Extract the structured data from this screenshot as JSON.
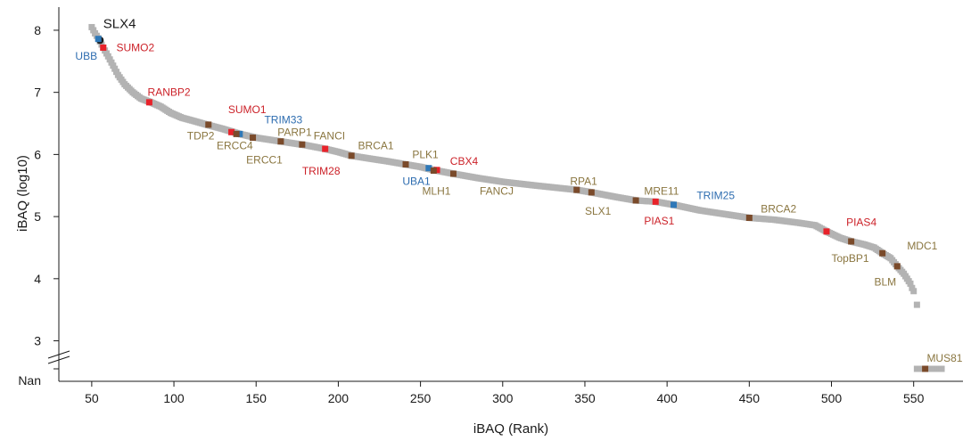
{
  "chart_data": {
    "type": "scatter",
    "xlabel": "iBAQ (Rank)",
    "ylabel": "iBAQ (log10)",
    "xlim": [
      30,
      580
    ],
    "ylim": [
      2.85,
      8.2
    ],
    "x_ticks": [
      50,
      100,
      150,
      200,
      250,
      300,
      350,
      400,
      450,
      500,
      550
    ],
    "y_ticks": [
      3,
      4,
      5,
      6,
      7,
      8
    ],
    "y_nan_label": "Nan",
    "axis_break": true,
    "colors": {
      "background_point": "#b3b3b3",
      "dna_repair": "#7a4a2a",
      "sumo": "#e8222a",
      "ubiquitin": "#2e78b8",
      "bait": "#1a1a1a",
      "label_dna_repair": "#8a7640",
      "label_sumo": "#cc2229",
      "label_ubiquitin": "#2e6db0",
      "label_bait": "#1a1a1a"
    },
    "curve": [
      [
        50,
        8.05
      ],
      [
        52,
        7.95
      ],
      [
        54,
        7.87
      ],
      [
        57,
        7.72
      ],
      [
        60,
        7.58
      ],
      [
        63,
        7.43
      ],
      [
        66,
        7.28
      ],
      [
        70,
        7.13
      ],
      [
        75,
        7.0
      ],
      [
        80,
        6.9
      ],
      [
        86,
        6.84
      ],
      [
        92,
        6.77
      ],
      [
        98,
        6.67
      ],
      [
        105,
        6.59
      ],
      [
        112,
        6.54
      ],
      [
        120,
        6.48
      ],
      [
        130,
        6.41
      ],
      [
        140,
        6.33
      ],
      [
        150,
        6.27
      ],
      [
        160,
        6.23
      ],
      [
        170,
        6.19
      ],
      [
        180,
        6.15
      ],
      [
        192,
        6.09
      ],
      [
        200,
        6.04
      ],
      [
        208,
        5.98
      ],
      [
        220,
        5.93
      ],
      [
        230,
        5.89
      ],
      [
        241,
        5.84
      ],
      [
        250,
        5.8
      ],
      [
        258,
        5.75
      ],
      [
        270,
        5.69
      ],
      [
        285,
        5.62
      ],
      [
        300,
        5.56
      ],
      [
        320,
        5.5
      ],
      [
        345,
        5.43
      ],
      [
        354,
        5.39
      ],
      [
        370,
        5.31
      ],
      [
        381,
        5.26
      ],
      [
        393,
        5.24
      ],
      [
        404,
        5.19
      ],
      [
        420,
        5.1
      ],
      [
        435,
        5.04
      ],
      [
        450,
        4.98
      ],
      [
        465,
        4.95
      ],
      [
        480,
        4.9
      ],
      [
        490,
        4.86
      ],
      [
        497,
        4.76
      ],
      [
        505,
        4.66
      ],
      [
        512,
        4.6
      ],
      [
        520,
        4.55
      ],
      [
        526,
        4.5
      ],
      [
        531,
        4.41
      ],
      [
        536,
        4.33
      ],
      [
        540,
        4.2
      ],
      [
        544,
        4.08
      ],
      [
        546,
        4.0
      ],
      [
        548,
        3.92
      ],
      [
        549,
        3.85
      ],
      [
        550,
        3.8
      ]
    ],
    "outliers": [
      {
        "x": 552,
        "y": 3.58
      }
    ],
    "nan_points": {
      "x_start": 552,
      "x_end": 567
    },
    "highlighted": [
      {
        "name": "SLX4",
        "x": 55,
        "y": 7.84,
        "group": "bait",
        "label_x": 57,
        "label_y": 8.09,
        "big": true
      },
      {
        "name": "UBB",
        "x": 54,
        "y": 7.86,
        "group": "ubiquitin",
        "label_x": 40,
        "label_y": 7.58
      },
      {
        "name": "SUMO2",
        "x": 57,
        "y": 7.72,
        "group": "sumo",
        "label_x": 65,
        "label_y": 7.72
      },
      {
        "name": "RANBP2",
        "x": 85,
        "y": 6.84,
        "group": "sumo",
        "label_x": 84,
        "label_y": 7.0
      },
      {
        "name": "SUMO1",
        "x": 135,
        "y": 6.36,
        "group": "sumo",
        "label_x": 133,
        "label_y": 6.72
      },
      {
        "name": "TRIM33",
        "x": 140,
        "y": 6.33,
        "group": "ubiquitin",
        "label_x": 155,
        "label_y": 6.56
      },
      {
        "name": "TDP2",
        "x": 121,
        "y": 6.48,
        "group": "dna_repair",
        "label_x": 108,
        "label_y": 6.3
      },
      {
        "name": "ERCC4",
        "x": 138,
        "y": 6.33,
        "group": "dna_repair",
        "label_x": 126,
        "label_y": 6.14
      },
      {
        "name": "ERCC1",
        "x": 148,
        "y": 6.27,
        "group": "dna_repair",
        "label_x": 144,
        "label_y": 5.91
      },
      {
        "name": "PARP1",
        "x": 165,
        "y": 6.21,
        "group": "dna_repair",
        "label_x": 163,
        "label_y": 6.36
      },
      {
        "name": "FANCI",
        "x": 178,
        "y": 6.16,
        "group": "dna_repair",
        "label_x": 185,
        "label_y": 6.3
      },
      {
        "name": "TRIM28",
        "x": 192,
        "y": 6.09,
        "group": "sumo",
        "label_x": 178,
        "label_y": 5.73
      },
      {
        "name": "BRCA1",
        "x": 208,
        "y": 5.98,
        "group": "dna_repair",
        "label_x": 212,
        "label_y": 6.14
      },
      {
        "name": "PLK1",
        "x": 241,
        "y": 5.84,
        "group": "dna_repair",
        "label_x": 245,
        "label_y": 6.0
      },
      {
        "name": "UBA1",
        "x": 255,
        "y": 5.78,
        "group": "ubiquitin",
        "label_x": 239,
        "label_y": 5.57
      },
      {
        "name": "CBX4",
        "x": 260,
        "y": 5.75,
        "group": "sumo",
        "label_x": 268,
        "label_y": 5.89
      },
      {
        "name": "MLH1",
        "x": 258,
        "y": 5.74,
        "group": "dna_repair",
        "label_x": 251,
        "label_y": 5.41
      },
      {
        "name": "FANCJ",
        "x": 270,
        "y": 5.69,
        "group": "dna_repair",
        "label_x": 286,
        "label_y": 5.41
      },
      {
        "name": "RPA1",
        "x": 345,
        "y": 5.43,
        "group": "dna_repair",
        "label_x": 341,
        "label_y": 5.57
      },
      {
        "name": "SLX1",
        "x": 354,
        "y": 5.39,
        "group": "dna_repair",
        "label_x": 350,
        "label_y": 5.09
      },
      {
        "name": "MRE11",
        "x": 381,
        "y": 5.26,
        "group": "dna_repair",
        "label_x": 386,
        "label_y": 5.41
      },
      {
        "name": "PIAS1",
        "x": 393,
        "y": 5.24,
        "group": "sumo",
        "label_x": 386,
        "label_y": 4.93
      },
      {
        "name": "TRIM25",
        "x": 404,
        "y": 5.19,
        "group": "ubiquitin",
        "label_x": 418,
        "label_y": 5.34
      },
      {
        "name": "BRCA2",
        "x": 450,
        "y": 4.98,
        "group": "dna_repair",
        "label_x": 457,
        "label_y": 5.12
      },
      {
        "name": "PIAS4",
        "x": 497,
        "y": 4.76,
        "group": "sumo",
        "label_x": 509,
        "label_y": 4.91
      },
      {
        "name": "TopBP1",
        "x": 512,
        "y": 4.6,
        "group": "dna_repair",
        "label_x": 500,
        "label_y": 4.33
      },
      {
        "name": "MDC1",
        "x": 531,
        "y": 4.41,
        "group": "dna_repair",
        "label_x": 546,
        "label_y": 4.53
      },
      {
        "name": "BLM",
        "x": 540,
        "y": 4.2,
        "group": "dna_repair",
        "label_x": 526,
        "label_y": 3.95
      },
      {
        "name": "MUS81",
        "x": 557,
        "y": "Nan",
        "group": "dna_repair",
        "label_x": 558,
        "label_y": "Nan"
      }
    ]
  }
}
